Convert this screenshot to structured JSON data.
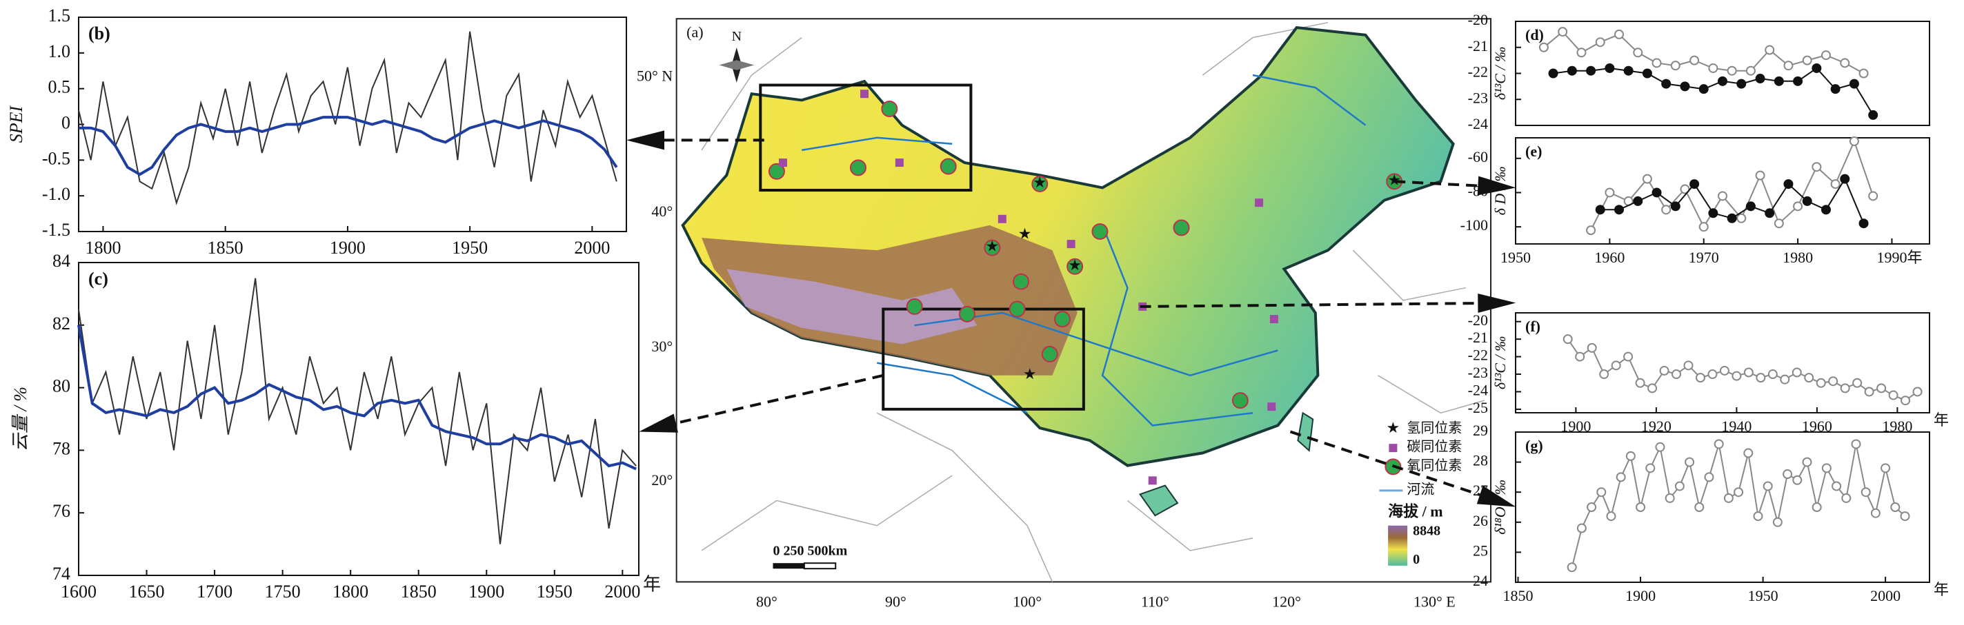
{
  "chart_data": [
    {
      "type": "line",
      "title": "(b)",
      "ylabel": "SPEI",
      "x": [
        1790,
        1795,
        1800,
        1805,
        1810,
        1815,
        1820,
        1825,
        1830,
        1835,
        1840,
        1845,
        1850,
        1855,
        1860,
        1865,
        1870,
        1875,
        1880,
        1885,
        1890,
        1895,
        1900,
        1905,
        1910,
        1915,
        1920,
        1925,
        1930,
        1935,
        1940,
        1945,
        1950,
        1955,
        1960,
        1965,
        1970,
        1975,
        1980,
        1985,
        1990,
        1995,
        2000,
        2005,
        2010
      ],
      "series": [
        {
          "color": "#333333",
          "values": [
            0.2,
            -0.5,
            0.6,
            -0.3,
            0.1,
            -0.8,
            -0.9,
            -0.4,
            -1.1,
            -0.6,
            0.3,
            -0.2,
            0.5,
            -0.3,
            0.6,
            -0.4,
            0.2,
            0.7,
            -0.1,
            0.4,
            0.6,
            0.0,
            0.8,
            -0.3,
            0.5,
            0.9,
            -0.4,
            0.3,
            0.1,
            0.5,
            0.9,
            -0.5,
            1.3,
            0.2,
            -0.6,
            0.4,
            0.7,
            -0.8,
            0.2,
            -0.3,
            0.6,
            0.1,
            0.4,
            -0.2,
            -0.8
          ]
        },
        {
          "color": "#1f3fa0",
          "values": [
            -0.05,
            -0.05,
            -0.1,
            -0.3,
            -0.6,
            -0.7,
            -0.6,
            -0.35,
            -0.15,
            -0.05,
            0.0,
            -0.05,
            -0.1,
            -0.1,
            -0.05,
            -0.1,
            -0.05,
            0.0,
            0.0,
            0.05,
            0.1,
            0.1,
            0.1,
            0.05,
            0.0,
            0.05,
            0.0,
            -0.05,
            -0.1,
            -0.2,
            -0.25,
            -0.15,
            -0.05,
            0.0,
            0.05,
            0.0,
            -0.05,
            0.0,
            0.05,
            0.0,
            -0.05,
            -0.1,
            -0.2,
            -0.35,
            -0.6
          ]
        }
      ],
      "xlim": [
        1790,
        2014
      ],
      "xticks": [
        1800,
        1850,
        1900,
        1950,
        2000
      ],
      "ylim": [
        -1.5,
        1.5
      ],
      "yticks": [
        -1.5,
        {
          "value": -1.0,
          "label": "-1.0"
        },
        -0.5,
        0,
        0.5,
        {
          "value": 1.0,
          "label": "1.0"
        },
        1.5
      ]
    },
    {
      "type": "line",
      "title": "(c)",
      "ylabel": "云量 / %",
      "xlabel": "年",
      "x": [
        1600,
        1610,
        1620,
        1630,
        1640,
        1650,
        1660,
        1670,
        1680,
        1690,
        1700,
        1710,
        1720,
        1730,
        1740,
        1750,
        1760,
        1770,
        1780,
        1790,
        1800,
        1810,
        1820,
        1830,
        1840,
        1850,
        1860,
        1870,
        1880,
        1890,
        1900,
        1910,
        1920,
        1930,
        1940,
        1950,
        1960,
        1970,
        1980,
        1990,
        2000,
        2010
      ],
      "series": [
        {
          "color": "#333333",
          "values": [
            82.5,
            79.5,
            80.5,
            78.5,
            81,
            79,
            80.5,
            78,
            81.5,
            79,
            82,
            78.5,
            80.5,
            83.5,
            79,
            80,
            78.5,
            81,
            79.5,
            80,
            78,
            80.5,
            79,
            81,
            78.5,
            79.5,
            80,
            77.5,
            80.5,
            78,
            79.5,
            75,
            78.5,
            78,
            80,
            77,
            78.5,
            76.5,
            79,
            75.5,
            78,
            77.5
          ]
        },
        {
          "color": "#1f3fa0",
          "values": [
            82,
            79.5,
            79.2,
            79.3,
            79.2,
            79.1,
            79.3,
            79.2,
            79.4,
            79.8,
            80.0,
            79.5,
            79.6,
            79.8,
            80.1,
            79.9,
            79.7,
            79.6,
            79.3,
            79.4,
            79.2,
            79.1,
            79.5,
            79.6,
            79.5,
            79.6,
            78.8,
            78.6,
            78.5,
            78.4,
            78.2,
            78.2,
            78.4,
            78.3,
            78.5,
            78.4,
            78.2,
            78.3,
            77.9,
            77.5,
            77.6,
            77.4
          ]
        }
      ],
      "xlim": [
        1600,
        2012
      ],
      "xticks": [
        1600,
        1650,
        1700,
        1750,
        1800,
        1850,
        1900,
        1950,
        2000
      ],
      "ylim": [
        74,
        84
      ],
      "yticks": [
        74,
        76,
        78,
        80,
        82,
        84
      ]
    },
    {
      "type": "line",
      "title": "(d)",
      "ylabel": "δ¹³C / ‰",
      "series": [
        {
          "color": "#888888",
          "marker": "open",
          "x": [
            1953,
            1955,
            1957,
            1959,
            1961,
            1963,
            1965,
            1967,
            1969,
            1971,
            1973,
            1975,
            1977,
            1979,
            1981,
            1983,
            1985,
            1987
          ],
          "values": [
            -21.0,
            -20.4,
            -21.2,
            -20.8,
            -20.5,
            -21.2,
            -21.6,
            -21.7,
            -21.5,
            -21.8,
            -21.9,
            -21.9,
            -21.1,
            -21.7,
            -21.5,
            -21.3,
            -21.6,
            -22.0
          ]
        },
        {
          "color": "#111111",
          "marker": "filled",
          "x": [
            1954,
            1956,
            1958,
            1960,
            1962,
            1964,
            1966,
            1968,
            1970,
            1972,
            1974,
            1976,
            1978,
            1980,
            1982,
            1984,
            1986,
            1988
          ],
          "values": [
            -22.0,
            -21.9,
            -21.9,
            -21.8,
            -21.9,
            -22.0,
            -22.4,
            -22.5,
            -22.6,
            -22.3,
            -22.4,
            -22.2,
            -22.3,
            -22.3,
            -21.8,
            -22.6,
            -22.4,
            -23.6
          ]
        }
      ],
      "xlim": [
        1950,
        1994
      ],
      "ylim": [
        -24,
        -20
      ],
      "yticks": [
        -24,
        -23,
        -22,
        -21,
        -20
      ]
    },
    {
      "type": "line",
      "title": "(e)",
      "ylabel": "δ D / ‰",
      "series": [
        {
          "color": "#888888",
          "marker": "open",
          "x": [
            1958,
            1960,
            1962,
            1964,
            1966,
            1968,
            1970,
            1972,
            1974,
            1976,
            1978,
            1980,
            1982,
            1984,
            1986,
            1988
          ],
          "values": [
            -102,
            -80,
            -85,
            -72,
            -90,
            -78,
            -100,
            -82,
            -95,
            -70,
            -98,
            -88,
            -65,
            -75,
            -50,
            -82
          ]
        },
        {
          "color": "#111111",
          "marker": "filled",
          "x": [
            1959,
            1961,
            1963,
            1965,
            1967,
            1969,
            1971,
            1973,
            1975,
            1977,
            1979,
            1981,
            1983,
            1985,
            1987
          ],
          "values": [
            -90,
            -90,
            -85,
            -80,
            -88,
            -75,
            -92,
            -95,
            -88,
            -92,
            -75,
            -85,
            -90,
            -72,
            -98
          ]
        }
      ],
      "xlim": [
        1950,
        1994
      ],
      "xticks": [
        1950,
        1960,
        1970,
        1980,
        {
          "value": 1990,
          "label": "1990年"
        }
      ],
      "ylim": [
        -110,
        -48
      ],
      "yticks": [
        -100,
        -80,
        -60
      ]
    },
    {
      "type": "line",
      "title": "(f)",
      "ylabel": "δ¹³C / ‰",
      "xlabel": "年",
      "series": [
        {
          "color": "#888888",
          "marker": "open",
          "x": [
            1898,
            1901,
            1904,
            1907,
            1910,
            1913,
            1916,
            1919,
            1922,
            1925,
            1928,
            1931,
            1934,
            1937,
            1940,
            1943,
            1946,
            1949,
            1952,
            1955,
            1958,
            1961,
            1964,
            1967,
            1970,
            1973,
            1976,
            1979,
            1982,
            1985
          ],
          "values": [
            -21.0,
            -22.0,
            -21.5,
            -23.0,
            -22.5,
            -22.0,
            -23.5,
            -23.8,
            -22.8,
            -23.0,
            -22.5,
            -23.2,
            -23.0,
            -22.8,
            -23.1,
            -22.9,
            -23.2,
            -23.0,
            -23.3,
            -22.9,
            -23.2,
            -23.5,
            -23.4,
            -23.8,
            -23.5,
            -24.0,
            -23.8,
            -24.2,
            -24.5,
            -24.0
          ]
        }
      ],
      "xlim": [
        1885,
        1988
      ],
      "xticks": [
        1900,
        1920,
        1940,
        1960,
        1980
      ],
      "ylim": [
        -25.2,
        -19.5
      ],
      "yticks": [
        -25,
        -24,
        -23,
        -22,
        -21,
        -20
      ]
    },
    {
      "type": "line",
      "title": "(g)",
      "ylabel": "δ¹⁸O / ‰",
      "xlabel": "年",
      "series": [
        {
          "color": "#888888",
          "marker": "open",
          "x": [
            1872,
            1876,
            1880,
            1884,
            1888,
            1892,
            1896,
            1900,
            1904,
            1908,
            1912,
            1916,
            1920,
            1924,
            1928,
            1932,
            1936,
            1940,
            1944,
            1948,
            1952,
            1956,
            1960,
            1964,
            1968,
            1972,
            1976,
            1980,
            1984,
            1988,
            1992,
            1996,
            2000,
            2004,
            2008
          ],
          "values": [
            24.5,
            25.8,
            26.5,
            27.0,
            26.2,
            27.5,
            28.2,
            26.5,
            27.8,
            28.5,
            26.8,
            27.2,
            28.0,
            26.5,
            27.5,
            28.6,
            26.8,
            27.0,
            28.3,
            26.2,
            27.2,
            26.0,
            27.6,
            27.4,
            28.0,
            26.5,
            27.8,
            27.2,
            26.8,
            28.6,
            27.0,
            26.3,
            27.8,
            26.5,
            26.2
          ]
        }
      ],
      "xlim": [
        1849,
        2018
      ],
      "xticks": [
        1850,
        1900,
        1950,
        2000
      ],
      "ylim": [
        24,
        29
      ],
      "yticks": [
        24,
        25,
        26,
        27,
        28,
        29
      ]
    }
  ],
  "map": {
    "title": "(a)",
    "north": "N",
    "lat_labels": [
      "50° N",
      "40°",
      "30°",
      "20°"
    ],
    "lon_labels": [
      "80°",
      "90°",
      "100°",
      "110°",
      "120°",
      "130° E"
    ],
    "legend": [
      "氢同位素",
      "碳同位素",
      "氧同位素",
      "河流"
    ],
    "elevation_title": "海拔 / m",
    "elevation_max": "8848",
    "elevation_min": "0",
    "scale": "0  250  500km"
  }
}
